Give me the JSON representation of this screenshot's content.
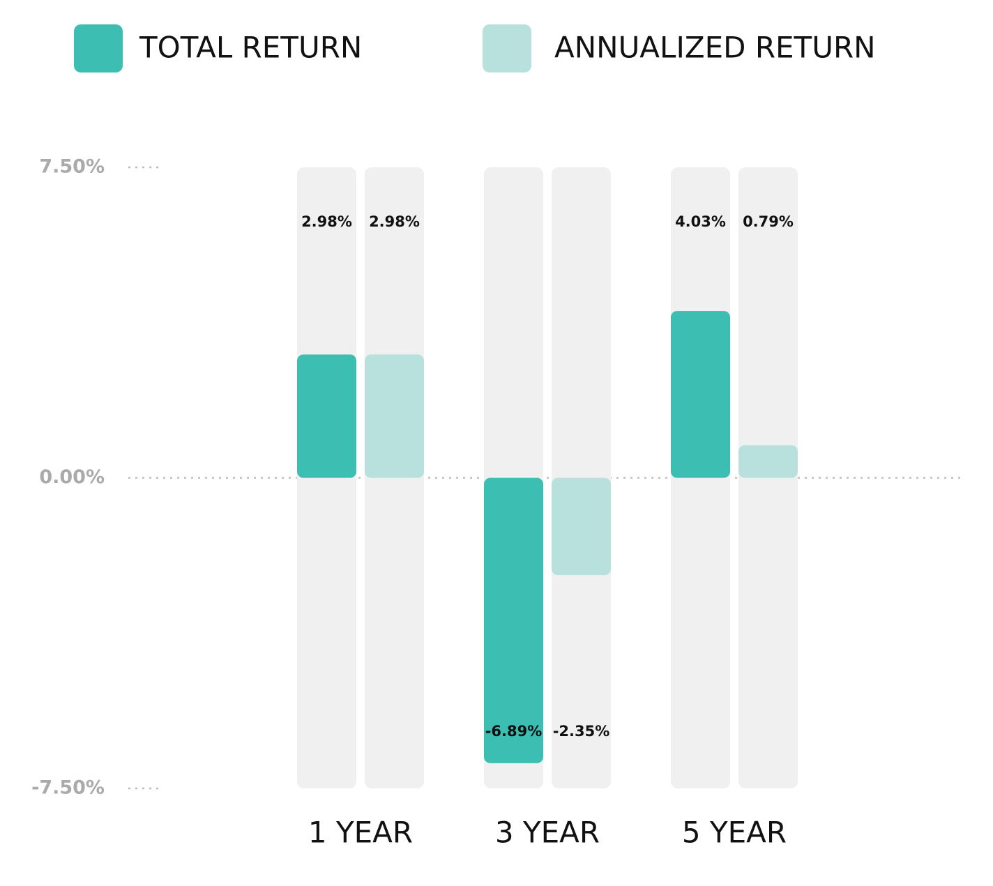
{
  "chart_data": {
    "type": "bar",
    "categories": [
      "1 YEAR",
      "3 YEAR",
      "5 YEAR"
    ],
    "series": [
      {
        "name": "TOTAL RETURN",
        "color": "#3cbeb2",
        "values": [
          2.98,
          -6.89,
          4.03
        ],
        "value_labels": [
          "2.98%",
          "-6.89%",
          "4.03%"
        ]
      },
      {
        "name": "ANNUALIZED RETURN",
        "color": "#b8e1de",
        "values": [
          2.98,
          -2.35,
          0.79
        ],
        "value_labels": [
          "2.98%",
          "-2.35%",
          "0.79%"
        ]
      }
    ],
    "ylim": [
      -7.5,
      7.5
    ],
    "yticks": [
      {
        "value": 7.5,
        "label": "7.50%"
      },
      {
        "value": 0,
        "label": "0.00%"
      },
      {
        "value": -7.5,
        "label": "-7.50%"
      }
    ],
    "grid": true
  }
}
